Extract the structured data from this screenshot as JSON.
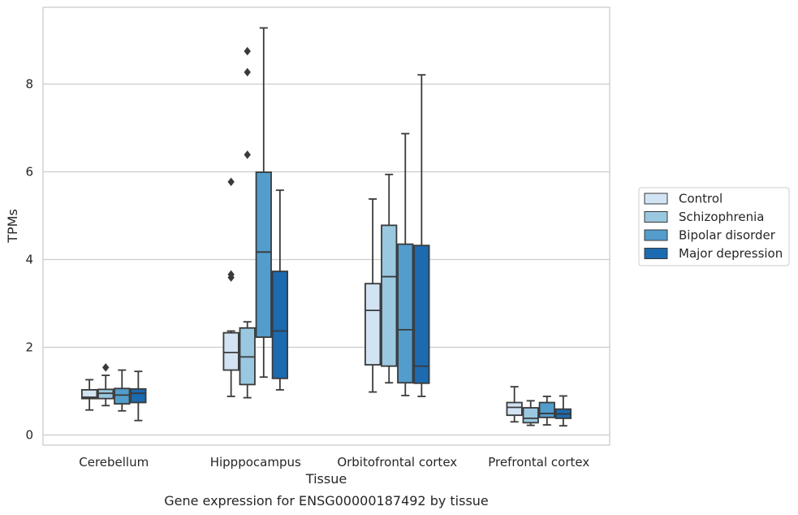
{
  "chart_data": {
    "type": "box",
    "title": "",
    "caption": "Gene expression for ENSG00000187492 by tissue",
    "xlabel": "Tissue",
    "ylabel": "TPMs",
    "ylim": [
      -0.22,
      9.77
    ],
    "yticks": [
      0,
      2,
      4,
      6,
      8
    ],
    "grid": "horizontal",
    "legend_position": "right",
    "categories": [
      "Cerebellum",
      "Hipppocampus",
      "Orbitofrontal cortex",
      "Prefrontal cortex"
    ],
    "series": [
      {
        "name": "Control",
        "color": "#d2e3f3",
        "boxes": [
          {
            "whislo": 0.57,
            "q1": 0.83,
            "median": 0.86,
            "q3": 1.03,
            "whishi": 1.26,
            "fliers": []
          },
          {
            "whislo": 0.88,
            "q1": 1.48,
            "median": 1.88,
            "q3": 2.33,
            "whishi": 2.37,
            "fliers": [
              5.77,
              3.66,
              3.59
            ]
          },
          {
            "whislo": 0.98,
            "q1": 1.6,
            "median": 2.84,
            "q3": 3.45,
            "whishi": 5.38,
            "fliers": []
          },
          {
            "whislo": 0.3,
            "q1": 0.45,
            "median": 0.63,
            "q3": 0.74,
            "whishi": 1.1,
            "fliers": []
          }
        ]
      },
      {
        "name": "Schizophrenia",
        "color": "#9ac8e0",
        "boxes": [
          {
            "whislo": 0.67,
            "q1": 0.83,
            "median": 0.95,
            "q3": 1.04,
            "whishi": 1.36,
            "fliers": [
              1.54
            ]
          },
          {
            "whislo": 0.85,
            "q1": 1.15,
            "median": 1.78,
            "q3": 2.44,
            "whishi": 2.58,
            "fliers": [
              8.75,
              8.27,
              6.39
            ]
          },
          {
            "whislo": 1.19,
            "q1": 1.57,
            "median": 3.61,
            "q3": 4.78,
            "whishi": 5.94,
            "fliers": []
          },
          {
            "whislo": 0.22,
            "q1": 0.28,
            "median": 0.38,
            "q3": 0.62,
            "whishi": 0.78,
            "fliers": []
          }
        ]
      },
      {
        "name": "Bipolar disorder",
        "color": "#529dcc",
        "boxes": [
          {
            "whislo": 0.55,
            "q1": 0.71,
            "median": 0.91,
            "q3": 1.06,
            "whishi": 1.48,
            "fliers": []
          },
          {
            "whislo": 1.32,
            "q1": 2.23,
            "median": 4.17,
            "q3": 5.99,
            "whishi": 9.28,
            "fliers": []
          },
          {
            "whislo": 0.9,
            "q1": 1.19,
            "median": 2.4,
            "q3": 4.35,
            "whishi": 6.87,
            "fliers": []
          },
          {
            "whislo": 0.23,
            "q1": 0.4,
            "median": 0.49,
            "q3": 0.74,
            "whishi": 0.88,
            "fliers": []
          }
        ]
      },
      {
        "name": "Major depression",
        "color": "#1c6aaf",
        "boxes": [
          {
            "whislo": 0.33,
            "q1": 0.74,
            "median": 0.95,
            "q3": 1.05,
            "whishi": 1.45,
            "fliers": []
          },
          {
            "whislo": 1.03,
            "q1": 1.29,
            "median": 2.37,
            "q3": 3.73,
            "whishi": 5.58,
            "fliers": []
          },
          {
            "whislo": 0.88,
            "q1": 1.18,
            "median": 1.57,
            "q3": 4.32,
            "whishi": 8.21,
            "fliers": []
          },
          {
            "whislo": 0.21,
            "q1": 0.38,
            "median": 0.48,
            "q3": 0.59,
            "whishi": 0.89,
            "fliers": []
          }
        ]
      }
    ]
  }
}
